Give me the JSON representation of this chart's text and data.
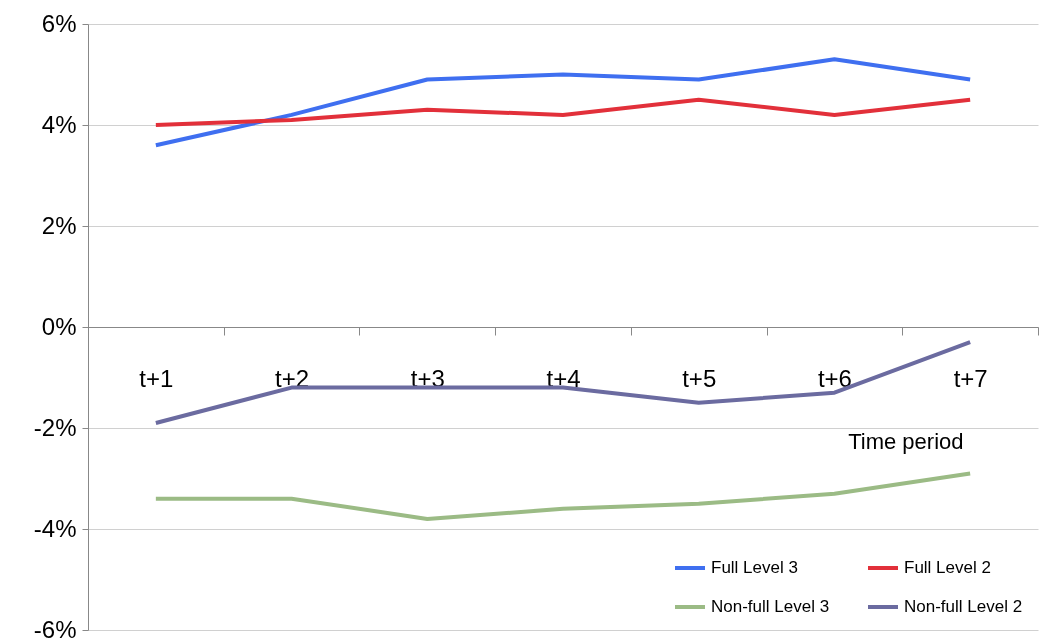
{
  "chart_data": {
    "type": "line",
    "categories": [
      "t+1",
      "t+2",
      "t+3",
      "t+4",
      "t+5",
      "t+6",
      "t+7"
    ],
    "xlabel": "Time period",
    "series": [
      {
        "name": "Full Level 3",
        "color": "#3f6ff0",
        "values": [
          3.6,
          4.2,
          4.9,
          5.0,
          4.9,
          5.3,
          4.9
        ]
      },
      {
        "name": "Full Level 2",
        "color": "#e2303a",
        "values": [
          4.0,
          4.1,
          4.3,
          4.2,
          4.5,
          4.2,
          4.5
        ]
      },
      {
        "name": "Non-full Level 3",
        "color": "#9bbb85",
        "values": [
          -3.4,
          -3.4,
          -3.8,
          -3.6,
          -3.5,
          -3.3,
          -2.9
        ]
      },
      {
        "name": "Non-full Level 2",
        "color": "#6b6ba0",
        "values": [
          -1.9,
          -1.2,
          -1.2,
          -1.2,
          -1.5,
          -1.3,
          -0.3
        ]
      }
    ],
    "ylim": [
      -6,
      6
    ],
    "yticks": [
      {
        "value": 6,
        "label": "6%"
      },
      {
        "value": 4,
        "label": "4%"
      },
      {
        "value": 2,
        "label": "2%"
      },
      {
        "value": 0,
        "label": "0%"
      },
      {
        "value": -2,
        "label": "-2%"
      },
      {
        "value": -4,
        "label": "-4%"
      },
      {
        "value": -6,
        "label": "-6%"
      }
    ],
    "grid": "y",
    "legend": "bottom right",
    "marker": "none",
    "line_style": "solid"
  }
}
